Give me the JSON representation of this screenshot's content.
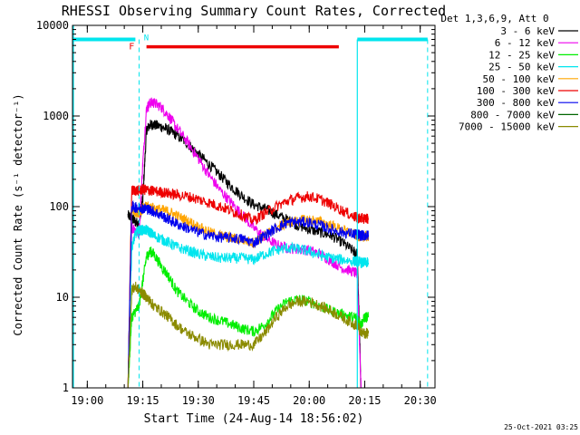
{
  "chart_data": {
    "type": "line",
    "title": "RHESSI Observing Summary Count Rates, Corrected",
    "xlabel": "Start Time (24-Aug-14 18:56:02)",
    "ylabel": "Corrected Count Rate (s⁻¹ detector⁻¹)",
    "yscale": "log",
    "ylim": [
      1,
      10000
    ],
    "xlim": [
      "18:56",
      "20:34"
    ],
    "x_ticks": [
      "19:00",
      "19:15",
      "19:30",
      "19:45",
      "20:00",
      "20:15",
      "20:30"
    ],
    "y_ticks": [
      "1",
      "10",
      "100",
      "1000",
      "10000"
    ],
    "legend_title": "Det 1,3,6,9, Att 0",
    "legend_position": "top-right (outside)",
    "footer": "25-Oct-2021 03:25",
    "flags": {
      "night_label": "N",
      "flare_label": "F",
      "night_color": "#00e5ee",
      "flare_color": "#ee0000",
      "night_segments": [
        [
          "18:56",
          "19:13"
        ],
        [
          "20:13",
          "20:32"
        ]
      ],
      "night_level": 7000,
      "flare_segment": [
        "19:16",
        "20:08"
      ],
      "flare_level": 5800,
      "dashed_lines_at": [
        "19:14",
        "20:32"
      ]
    },
    "x": [
      "19:11",
      "19:12",
      "19:13",
      "19:14",
      "19:15",
      "19:16",
      "19:17",
      "19:18",
      "19:20",
      "19:22",
      "19:24",
      "19:27",
      "19:30",
      "19:33",
      "19:36",
      "19:39",
      "19:42",
      "19:45",
      "19:48",
      "19:51",
      "19:54",
      "19:57",
      "20:00",
      "20:03",
      "20:06",
      "20:09",
      "20:12",
      "20:13",
      "20:14",
      "20:15",
      "20:16"
    ],
    "series": [
      {
        "name": "3 - 6 keV",
        "color": "#000000",
        "values": [
          80,
          75,
          68,
          64,
          120,
          700,
          800,
          800,
          760,
          700,
          620,
          500,
          380,
          290,
          220,
          165,
          130,
          105,
          95,
          82,
          72,
          62,
          56,
          52,
          48,
          40,
          32,
          30,
          1,
          1,
          1
        ]
      },
      {
        "name": "6 - 12 keV",
        "color": "#ee00ee",
        "values": [
          1,
          60,
          55,
          50,
          300,
          1200,
          1400,
          1400,
          1250,
          1000,
          760,
          520,
          340,
          220,
          150,
          110,
          80,
          58,
          46,
          38,
          35,
          34,
          33,
          30,
          25,
          21,
          19,
          18,
          1,
          1,
          1
        ]
      },
      {
        "name": "12 - 25 keV",
        "color": "#00ee00",
        "values": [
          1,
          6,
          7,
          8,
          15,
          28,
          32,
          30,
          22,
          17,
          12,
          9,
          7,
          6,
          5.5,
          5,
          4.5,
          4.2,
          5,
          7,
          9,
          9.5,
          9,
          8,
          7,
          6.5,
          6,
          6,
          5,
          6,
          6
        ]
      },
      {
        "name": "25 - 50 keV",
        "color": "#00e5ee",
        "values": [
          1,
          35,
          50,
          55,
          55,
          55,
          52,
          48,
          44,
          40,
          36,
          33,
          30,
          28,
          27,
          27,
          27,
          26,
          30,
          33,
          35,
          34,
          32,
          29,
          27,
          26,
          25,
          25,
          24,
          24,
          24
        ]
      },
      {
        "name": "50 - 100 keV",
        "color": "#ffa500",
        "values": [
          1,
          90,
          88,
          87,
          95,
          100,
          98,
          96,
          92,
          88,
          80,
          70,
          60,
          52,
          48,
          45,
          43,
          40,
          48,
          58,
          66,
          70,
          72,
          68,
          62,
          55,
          50,
          48,
          47,
          47,
          47
        ]
      },
      {
        "name": "100 - 300 keV",
        "color": "#ee0000",
        "values": [
          1,
          150,
          152,
          150,
          155,
          152,
          150,
          148,
          145,
          140,
          135,
          130,
          120,
          110,
          100,
          90,
          80,
          70,
          85,
          100,
          115,
          125,
          130,
          120,
          105,
          90,
          78,
          75,
          74,
          74,
          74
        ]
      },
      {
        "name": "300 - 800 keV",
        "color": "#0000ee",
        "values": [
          1,
          100,
          98,
          97,
          96,
          95,
          92,
          88,
          80,
          72,
          65,
          58,
          52,
          48,
          46,
          45,
          44,
          40,
          48,
          58,
          66,
          68,
          67,
          62,
          56,
          52,
          50,
          49,
          48,
          48,
          48
        ]
      },
      {
        "name": "800 - 7000 keV",
        "color": "#006400",
        "values": [
          1,
          1,
          1,
          1,
          1,
          1,
          1,
          1,
          1,
          1,
          1,
          1,
          1,
          1,
          1,
          1,
          1,
          1,
          1,
          1,
          1,
          1,
          1,
          1,
          1,
          1,
          1,
          1,
          1,
          1,
          1
        ]
      },
      {
        "name": "7000 - 15000 keV",
        "color": "#8b8b00",
        "values": [
          1,
          12,
          13,
          12,
          11,
          10,
          9,
          8,
          7,
          6,
          5,
          4,
          3.5,
          3,
          3,
          3,
          3,
          3,
          4,
          6,
          8,
          9,
          9,
          8,
          7,
          6,
          5,
          5,
          4,
          4,
          4
        ]
      }
    ]
  }
}
